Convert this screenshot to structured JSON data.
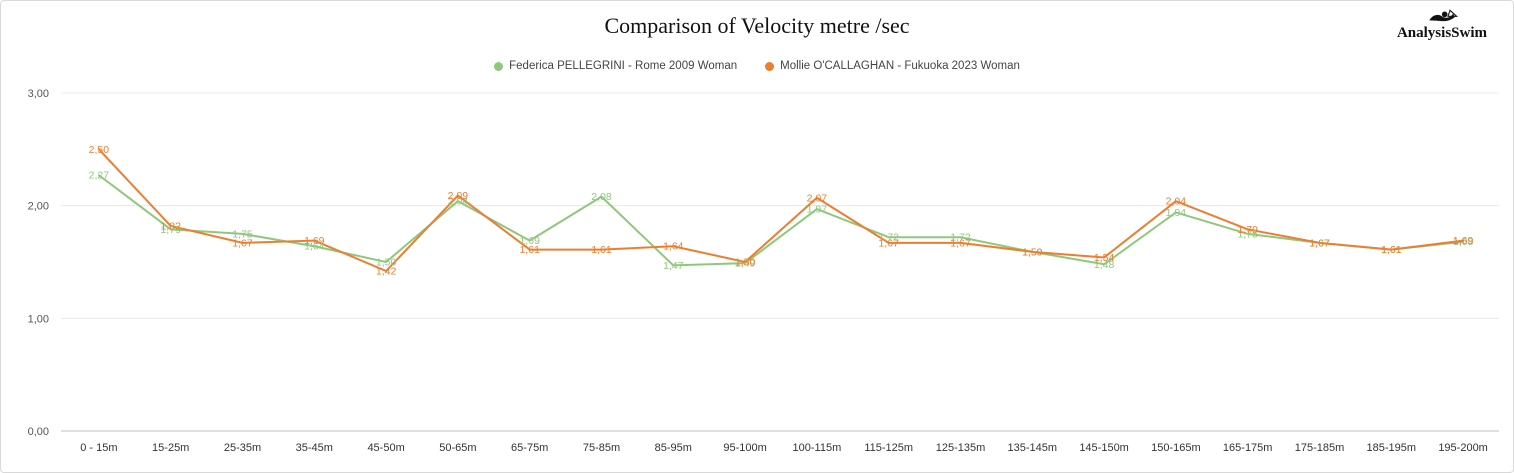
{
  "header": {
    "logo_text": "AnalysisSwim"
  },
  "chart_data": {
    "type": "line",
    "title": "Comparison of Velocity metre /sec",
    "xlabel": "",
    "ylabel": "",
    "ylim": [
      0,
      3
    ],
    "yticks": [
      3,
      2,
      1,
      0
    ],
    "ytick_labels": [
      "3,00",
      "2,00",
      "1,00",
      "0,00"
    ],
    "grid": true,
    "legend_position": "top",
    "decimal_separator": ",",
    "categories": [
      "0 - 15m",
      "15-25m",
      "25-35m",
      "35-45m",
      "45-50m",
      "50-65m",
      "65-75m",
      "75-85m",
      "85-95m",
      "95-100m",
      "100-115m",
      "115-125m",
      "125-135m",
      "135-145m",
      "145-150m",
      "150-165m",
      "165-175m",
      "175-185m",
      "185-195m",
      "195-200m"
    ],
    "series": [
      {
        "name": "Federica PELLEGRINI - Rome 2009 Woman",
        "color": "#8fc87d",
        "values": [
          2.27,
          1.79,
          1.75,
          1.64,
          1.5,
          2.04,
          1.69,
          2.08,
          1.47,
          1.49,
          1.97,
          1.72,
          1.72,
          1.59,
          1.48,
          1.94,
          1.75,
          1.67,
          1.61,
          1.68
        ]
      },
      {
        "name": "Mollie O'CALLAGHAN - Fukuoka 2023 Woman",
        "color": "#ed7d31",
        "values": [
          2.5,
          1.82,
          1.67,
          1.69,
          1.42,
          2.09,
          1.61,
          1.61,
          1.64,
          1.5,
          2.07,
          1.67,
          1.67,
          1.59,
          1.54,
          2.04,
          1.79,
          1.67,
          1.61,
          1.69
        ]
      }
    ],
    "colors": {
      "gridline": "#e8e8e8",
      "axis_line": "#bfbfbf",
      "tick_text": "#555555",
      "category_text": "#333333"
    }
  }
}
